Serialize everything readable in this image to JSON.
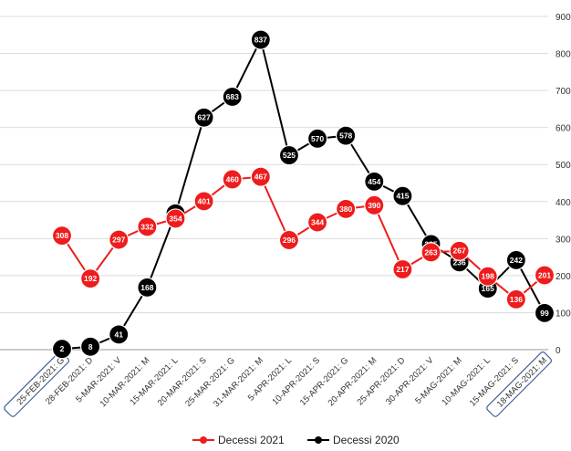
{
  "chart_data": {
    "type": "line",
    "title": "",
    "xlabel": "",
    "ylabel": "",
    "ylim": [
      0,
      900
    ],
    "yticks": [
      0,
      100,
      200,
      300,
      400,
      500,
      600,
      700,
      800,
      900
    ],
    "grid": true,
    "legend": "bottom",
    "categories": [
      "25-FEB-2021: G",
      "28-FEB-2021: D",
      "5-MAR-2021: V",
      "10-MAR-2021: M",
      "15-MAR-2021: L",
      "20-MAR-2021: S",
      "25-MAR-2021: G",
      "31-MAR-2021: M",
      "5-APR-2021: L",
      "10-APR-2021: S",
      "15-APR-2021: G",
      "20-APR-2021: M",
      "25-APR-2021: D",
      "30-APR-2021: V",
      "5-MAG-2021: M",
      "10-MAG-2021: L",
      "15-MAG-2021: S",
      "18-MAG-2021: M"
    ],
    "highlighted_categories": [
      "25-FEB-2021: G",
      "18-MAG-2021: M"
    ],
    "series": [
      {
        "name": "Decessi 2021",
        "color": "#ee1c1c",
        "values": [
          308,
          192,
          297,
          332,
          354,
          401,
          460,
          467,
          296,
          344,
          380,
          390,
          217,
          263,
          267,
          198,
          136,
          201
        ]
      },
      {
        "name": "Decessi 2020",
        "color": "#000000",
        "values": [
          2,
          8,
          41,
          168,
          368,
          627,
          683,
          837,
          525,
          570,
          578,
          454,
          415,
          285,
          236,
          165,
          242,
          99
        ]
      }
    ]
  }
}
